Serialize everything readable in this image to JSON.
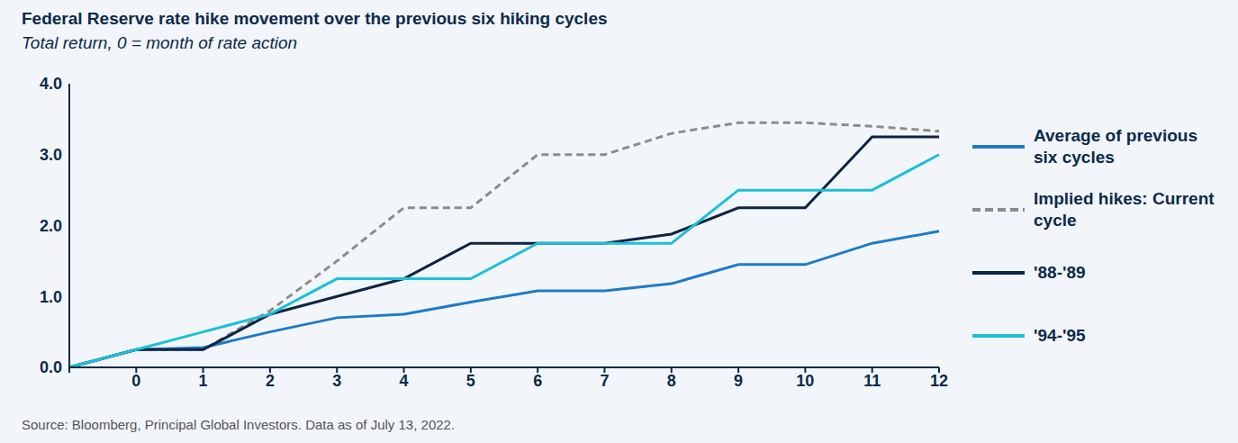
{
  "chart_data": {
    "type": "line",
    "title": "Federal Reserve rate hike movement over the previous six hiking cycles",
    "subtitle": "Total return, 0 = month of rate action",
    "source": "Source: Bloomberg, Principal Global Investors. Data as of July 13, 2022.",
    "categories": [
      null,
      "0",
      "1",
      "2",
      "3",
      "4",
      "5",
      "6",
      "7",
      "8",
      "9",
      "10",
      "11",
      "12"
    ],
    "series": [
      {
        "name": "Average of previous six cycles",
        "color": "#1f7bc8",
        "line_style": "solid",
        "values": [
          0,
          0.25,
          0.28,
          0.5,
          0.7,
          0.75,
          0.92,
          1.08,
          1.08,
          1.18,
          1.45,
          1.45,
          1.75,
          1.92
        ]
      },
      {
        "name": "Implied hikes: Current cycle",
        "color": "#8c8c8c",
        "line_style": "dashed",
        "values": [
          0,
          0.25,
          0.25,
          0.8,
          1.5,
          2.25,
          2.25,
          3.0,
          3.0,
          3.3,
          3.45,
          3.45,
          3.4,
          3.33
        ]
      },
      {
        "name": "'88-'89",
        "color": "#0b2447",
        "line_style": "solid",
        "values": [
          0,
          0.25,
          0.25,
          0.75,
          1.0,
          1.25,
          1.75,
          1.75,
          1.75,
          1.88,
          2.25,
          2.25,
          3.25,
          3.25
        ]
      },
      {
        "name": "'94-'95",
        "color": "#1cc0d8",
        "line_style": "solid",
        "values": [
          0,
          0.25,
          0.5,
          0.75,
          1.25,
          1.25,
          1.25,
          1.75,
          1.75,
          1.75,
          2.5,
          2.5,
          2.5,
          3.0
        ]
      }
    ],
    "ylim": [
      0,
      4
    ],
    "yticks": [
      {
        "value": 0,
        "label": "0.0"
      },
      {
        "value": 1,
        "label": "1.0"
      },
      {
        "value": 2,
        "label": "2.0"
      },
      {
        "value": 3,
        "label": "3.0"
      },
      {
        "value": 4,
        "label": "4.0"
      }
    ],
    "grid": false,
    "legend": "right",
    "marker": "none"
  }
}
